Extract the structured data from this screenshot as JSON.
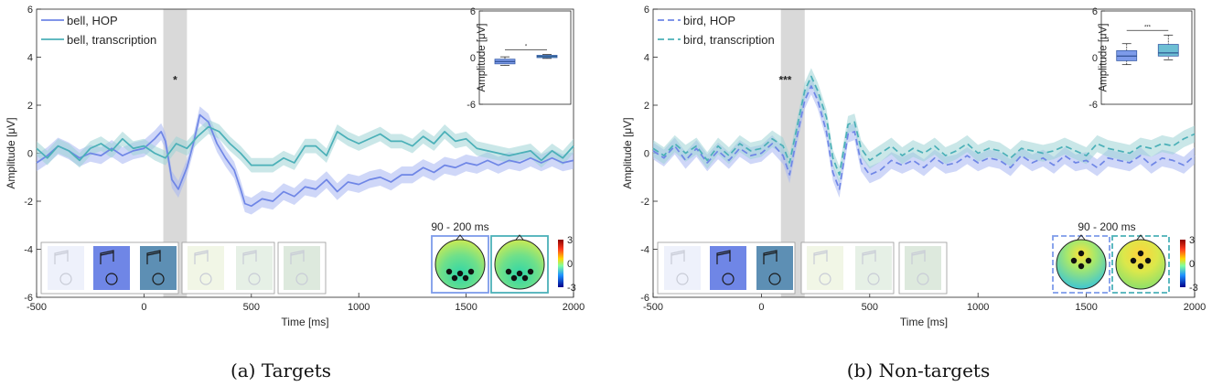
{
  "figure": {
    "captions": [
      "(a) Targets",
      "(b) Non-targets"
    ]
  },
  "colors": {
    "hop": "#6f86e6",
    "hop_fill": "#a7b6f2",
    "transcription": "#4bb0b8",
    "transcription_fill": "#9fd3d6",
    "shade": "#d9d9d9",
    "box_hop": "#7d9bea",
    "box_trans": "#6dbfd4"
  },
  "chart_data": [
    {
      "type": "line",
      "panel": "a",
      "caption": "(a) Targets",
      "xlabel": "Time [ms]",
      "ylabel": "Amplitude [μV]",
      "xlim": [
        -500,
        2000
      ],
      "ylim": [
        -6,
        6
      ],
      "xticks": [
        "-500",
        "0",
        "500",
        "1000",
        "1500",
        "2000"
      ],
      "yticks": [
        "-6",
        "-4",
        "-2",
        "0",
        "2",
        "4",
        "6"
      ],
      "line_style": "solid",
      "shaded_window_ms": [
        90,
        200
      ],
      "significance_label": "*",
      "topomap_window_label": "90 - 200 ms",
      "colorbar_ticks": [
        "3",
        "0",
        "-3"
      ],
      "series": [
        {
          "name": "bell, HOP",
          "x": [
            -500,
            -450,
            -400,
            -350,
            -300,
            -250,
            -200,
            -150,
            -100,
            -50,
            0,
            50,
            80,
            100,
            130,
            160,
            200,
            230,
            260,
            300,
            340,
            380,
            420,
            450,
            470,
            500,
            550,
            600,
            650,
            700,
            750,
            800,
            850,
            900,
            950,
            1000,
            1050,
            1100,
            1150,
            1200,
            1250,
            1300,
            1350,
            1400,
            1450,
            1500,
            1550,
            1600,
            1650,
            1700,
            1750,
            1800,
            1850,
            1900,
            1950,
            2000
          ],
          "values": [
            -0.4,
            -0.1,
            0.3,
            0.1,
            -0.2,
            0.0,
            -0.1,
            0.2,
            -0.1,
            0.1,
            0.2,
            0.6,
            0.9,
            0.5,
            -1.1,
            -1.5,
            -0.6,
            0.4,
            1.6,
            1.3,
            0.4,
            -0.2,
            -0.7,
            -1.5,
            -2.1,
            -2.2,
            -1.9,
            -2.0,
            -1.6,
            -1.8,
            -1.4,
            -1.5,
            -1.1,
            -1.6,
            -1.2,
            -1.3,
            -1.1,
            -1.0,
            -1.2,
            -0.9,
            -0.9,
            -0.6,
            -0.8,
            -0.5,
            -0.6,
            -0.4,
            -0.5,
            -0.3,
            -0.5,
            -0.3,
            -0.4,
            -0.2,
            -0.4,
            -0.2,
            -0.4,
            -0.3
          ],
          "band": 0.35
        },
        {
          "name": "bell, transcription",
          "x": [
            -500,
            -450,
            -400,
            -350,
            -300,
            -250,
            -200,
            -150,
            -100,
            -50,
            0,
            50,
            100,
            150,
            200,
            250,
            300,
            350,
            400,
            450,
            500,
            550,
            600,
            650,
            700,
            750,
            800,
            850,
            900,
            950,
            1000,
            1050,
            1100,
            1150,
            1200,
            1250,
            1300,
            1350,
            1400,
            1450,
            1500,
            1550,
            1600,
            1650,
            1700,
            1750,
            1800,
            1850,
            1900,
            1950,
            2000
          ],
          "values": [
            0.2,
            -0.2,
            0.3,
            0.1,
            -0.3,
            0.2,
            0.4,
            0.1,
            0.6,
            0.2,
            0.3,
            0.0,
            -0.2,
            0.4,
            0.2,
            0.7,
            1.1,
            0.9,
            0.4,
            0.0,
            -0.5,
            -0.5,
            -0.5,
            -0.2,
            -0.4,
            0.3,
            0.3,
            -0.1,
            0.9,
            0.6,
            0.4,
            0.6,
            0.8,
            0.5,
            0.5,
            0.3,
            0.7,
            0.4,
            0.9,
            0.5,
            0.6,
            0.2,
            0.1,
            0.0,
            -0.1,
            0.0,
            0.1,
            -0.3,
            0.1,
            -0.2,
            0.3
          ],
          "band": 0.3
        }
      ],
      "inset": {
        "type": "boxplot",
        "ylabel": "Amplitude [μV]",
        "ylim": [
          -6,
          6
        ],
        "yticks": [
          "6",
          "0",
          "-6"
        ],
        "significance_label": "*",
        "boxes": [
          {
            "name": "HOP",
            "q1": -0.8,
            "median": -0.5,
            "q3": -0.2,
            "min": -1.0,
            "max": 0.1
          },
          {
            "name": "transcription",
            "q1": 0.0,
            "median": 0.15,
            "q3": 0.3,
            "min": -0.1,
            "max": 0.4
          }
        ]
      }
    },
    {
      "type": "line",
      "panel": "b",
      "caption": "(b) Non-targets",
      "xlabel": "Time [ms]",
      "ylabel": "Amplitude [μV]",
      "xlim": [
        -500,
        2000
      ],
      "ylim": [
        -6,
        6
      ],
      "xticks": [
        "-500",
        "0",
        "500",
        "1000",
        "1500",
        "2000"
      ],
      "yticks": [
        "-6",
        "-4",
        "-2",
        "0",
        "2",
        "4",
        "6"
      ],
      "line_style": "dashed",
      "shaded_window_ms": [
        90,
        200
      ],
      "significance_label": "***",
      "topomap_window_label": "90 - 200 ms",
      "colorbar_ticks": [
        "3",
        "0",
        "-3"
      ],
      "series": [
        {
          "name": "bird, HOP",
          "x": [
            -500,
            -450,
            -400,
            -350,
            -300,
            -250,
            -200,
            -150,
            -100,
            -50,
            0,
            50,
            100,
            130,
            160,
            200,
            230,
            260,
            300,
            330,
            360,
            400,
            430,
            460,
            500,
            550,
            600,
            650,
            700,
            750,
            800,
            850,
            900,
            950,
            1000,
            1050,
            1100,
            1150,
            1200,
            1250,
            1300,
            1350,
            1400,
            1450,
            1500,
            1550,
            1600,
            1650,
            1700,
            1750,
            1800,
            1850,
            1900,
            1950,
            2000
          ],
          "values": [
            0.1,
            -0.2,
            0.3,
            -0.3,
            0.2,
            -0.4,
            0.1,
            -0.3,
            0.2,
            -0.1,
            0.0,
            0.4,
            -0.1,
            -0.9,
            0.5,
            2.2,
            2.8,
            2.2,
            0.9,
            -0.8,
            -1.5,
            0.8,
            0.9,
            -0.4,
            -0.9,
            -0.7,
            -0.3,
            -0.5,
            -0.3,
            -0.6,
            -0.2,
            -0.5,
            -0.4,
            -0.1,
            -0.4,
            -0.2,
            -0.3,
            -0.6,
            -0.1,
            -0.4,
            -0.2,
            -0.5,
            -0.1,
            -0.4,
            -0.3,
            -0.6,
            -0.2,
            -0.3,
            -0.4,
            -0.1,
            -0.5,
            -0.2,
            -0.3,
            -0.5,
            -0.1
          ],
          "band": 0.35
        },
        {
          "name": "bird, transcription",
          "x": [
            -500,
            -450,
            -400,
            -350,
            -300,
            -250,
            -200,
            -150,
            -100,
            -50,
            0,
            50,
            100,
            130,
            160,
            200,
            230,
            260,
            300,
            330,
            360,
            400,
            430,
            460,
            500,
            550,
            600,
            650,
            700,
            750,
            800,
            850,
            900,
            950,
            1000,
            1050,
            1100,
            1150,
            1200,
            1250,
            1300,
            1350,
            1400,
            1450,
            1500,
            1550,
            1600,
            1650,
            1700,
            1750,
            1800,
            1850,
            1900,
            1950,
            2000
          ],
          "values": [
            0.2,
            -0.1,
            0.4,
            0.0,
            0.3,
            -0.3,
            0.3,
            -0.1,
            0.4,
            0.1,
            0.2,
            0.6,
            0.3,
            -0.4,
            0.9,
            2.6,
            3.2,
            2.6,
            1.5,
            -0.2,
            -0.9,
            1.2,
            1.3,
            0.2,
            -0.3,
            0.0,
            0.3,
            -0.1,
            0.2,
            0.0,
            0.3,
            -0.1,
            0.1,
            0.4,
            0.0,
            0.2,
            0.1,
            -0.2,
            0.2,
            0.1,
            0.0,
            0.1,
            0.3,
            0.1,
            -0.1,
            0.4,
            0.2,
            0.1,
            0.0,
            0.3,
            0.2,
            0.4,
            0.3,
            0.6,
            0.8
          ],
          "band": 0.35
        }
      ],
      "inset": {
        "type": "boxplot",
        "ylabel": "Amplitude [μV]",
        "ylim": [
          -6,
          6
        ],
        "yticks": [
          "6",
          "0",
          "-6"
        ],
        "significance_label": "***",
        "boxes": [
          {
            "name": "HOP",
            "q1": -0.4,
            "median": 0.2,
            "q3": 0.9,
            "min": -0.9,
            "max": 1.8
          },
          {
            "name": "transcription",
            "q1": 0.2,
            "median": 0.6,
            "q3": 1.7,
            "min": -0.3,
            "max": 2.9
          }
        ]
      }
    }
  ]
}
